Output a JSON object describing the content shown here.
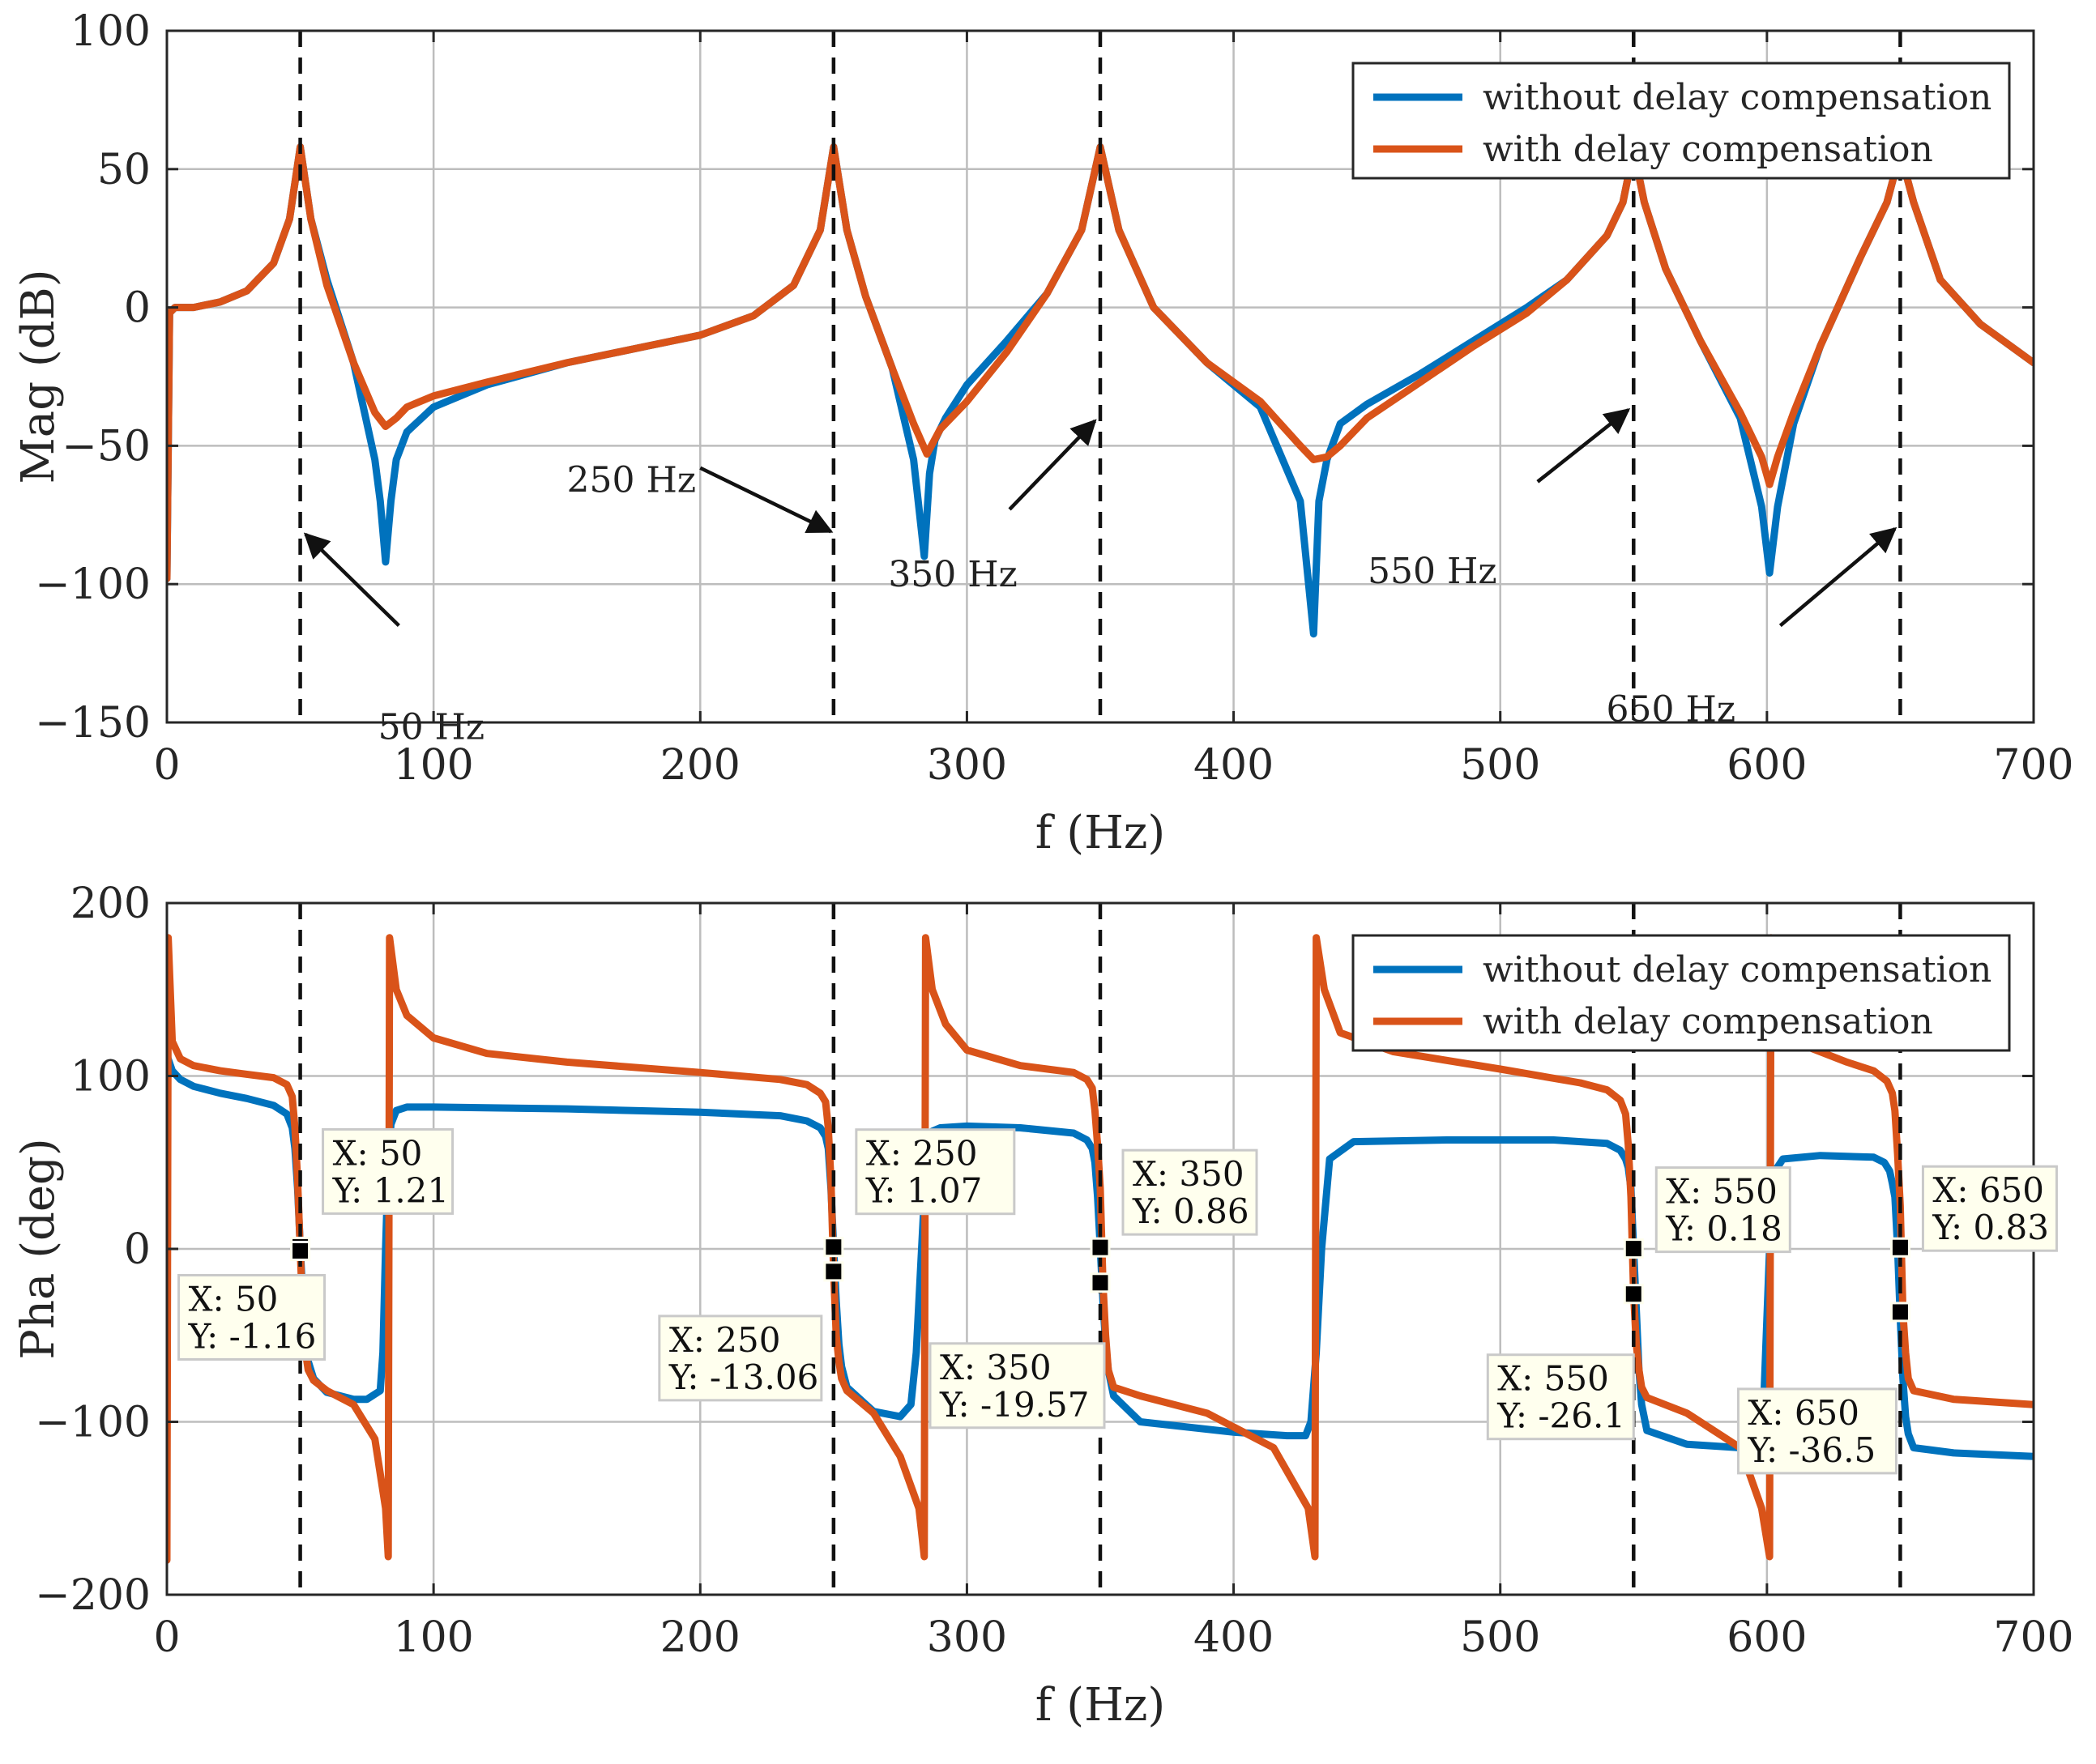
{
  "chart_data": [
    {
      "type": "line",
      "id": "magnitude",
      "xlabel": "f  (Hz)",
      "ylabel": "Mag  (dB)",
      "xlim": [
        0,
        700
      ],
      "ylim": [
        -150,
        100
      ],
      "xticks": [
        0,
        100,
        200,
        300,
        400,
        500,
        600,
        700
      ],
      "yticks": [
        -150,
        -100,
        -50,
        0,
        50,
        100
      ],
      "ytick_labels": [
        "−150",
        "−100",
        "−50",
        "0",
        "50",
        "100"
      ],
      "grid": true,
      "legend": {
        "position": "top-right"
      },
      "resonance_marks": [
        50,
        250,
        350,
        550,
        650
      ],
      "series": [
        {
          "name": "without delay compensation",
          "color": "#0072bd",
          "x": [
            0,
            1,
            3,
            10,
            20,
            30,
            40,
            46,
            50,
            54,
            60,
            70,
            78,
            80,
            82,
            84,
            86,
            90,
            100,
            120,
            150,
            180,
            200,
            220,
            235,
            245,
            250,
            255,
            262,
            272,
            280,
            284,
            286,
            288,
            292,
            300,
            315,
            330,
            343,
            350,
            357,
            370,
            390,
            410,
            425,
            430,
            432,
            435,
            440,
            450,
            470,
            490,
            510,
            525,
            540,
            546,
            550,
            554,
            562,
            575,
            590,
            598,
            601,
            604,
            610,
            620,
            635,
            645,
            650,
            655,
            665,
            680,
            700
          ],
          "y": [
            -98,
            -2,
            0,
            0,
            2,
            6,
            16,
            32,
            58,
            32,
            10,
            -20,
            -55,
            -70,
            -92,
            -70,
            -55,
            -45,
            -36,
            -28,
            -20,
            -14,
            -10,
            -3,
            8,
            28,
            58,
            28,
            4,
            -22,
            -55,
            -90,
            -60,
            -48,
            -40,
            -28,
            -12,
            5,
            28,
            58,
            28,
            0,
            -20,
            -36,
            -70,
            -118,
            -70,
            -55,
            -42,
            -35,
            -24,
            -12,
            0,
            10,
            26,
            38,
            57,
            38,
            14,
            -12,
            -40,
            -72,
            -96,
            -72,
            -42,
            -14,
            18,
            38,
            56,
            38,
            10,
            -6,
            -20
          ]
        },
        {
          "name": "with delay compensation",
          "color": "#d95319",
          "x": [
            0,
            1,
            3,
            10,
            20,
            30,
            40,
            46,
            50,
            54,
            60,
            70,
            78,
            82,
            86,
            90,
            100,
            120,
            150,
            180,
            200,
            220,
            235,
            245,
            250,
            255,
            262,
            272,
            280,
            285,
            290,
            300,
            315,
            330,
            343,
            350,
            357,
            370,
            390,
            410,
            425,
            430,
            435,
            440,
            450,
            470,
            490,
            510,
            525,
            540,
            546,
            550,
            554,
            562,
            575,
            590,
            598,
            601,
            604,
            610,
            620,
            635,
            645,
            650,
            655,
            665,
            680,
            700
          ],
          "y": [
            -98,
            -2,
            0,
            0,
            2,
            6,
            16,
            32,
            58,
            32,
            8,
            -20,
            -38,
            -43,
            -40,
            -36,
            -32,
            -27,
            -20,
            -14,
            -10,
            -3,
            8,
            28,
            58,
            28,
            4,
            -22,
            -42,
            -53,
            -44,
            -34,
            -16,
            5,
            28,
            58,
            28,
            0,
            -20,
            -34,
            -50,
            -55,
            -54,
            -50,
            -40,
            -27,
            -14,
            -2,
            10,
            26,
            38,
            57,
            38,
            14,
            -12,
            -38,
            -54,
            -64,
            -54,
            -38,
            -14,
            18,
            38,
            56,
            38,
            10,
            -6,
            -20
          ]
        }
      ]
    },
    {
      "type": "line",
      "id": "phase",
      "xlabel": "f  (Hz)",
      "ylabel": "Pha  (deg)",
      "xlim": [
        0,
        700
      ],
      "ylim": [
        -200,
        200
      ],
      "xticks": [
        0,
        100,
        200,
        300,
        400,
        500,
        600,
        700
      ],
      "yticks": [
        -200,
        -100,
        0,
        100,
        200
      ],
      "ytick_labels": [
        "−200",
        "−100",
        "0",
        "100",
        "200"
      ],
      "grid": true,
      "legend": {
        "position": "top-right"
      },
      "resonance_marks": [
        50,
        250,
        350,
        550,
        650
      ],
      "series": [
        {
          "name": "without delay compensation",
          "color": "#0072bd",
          "x": [
            0,
            2,
            5,
            10,
            20,
            30,
            40,
            45,
            47,
            48,
            49,
            50,
            51,
            52,
            53,
            55,
            60,
            70,
            75,
            80,
            81,
            82,
            83,
            84,
            86,
            90,
            100,
            150,
            200,
            230,
            240,
            245,
            247,
            248,
            249,
            250,
            251,
            252,
            253,
            255,
            265,
            275,
            279,
            281,
            283,
            285,
            287,
            290,
            300,
            320,
            340,
            345,
            347,
            348,
            349,
            350,
            351,
            352,
            353,
            355,
            365,
            400,
            420,
            427,
            429,
            431,
            433,
            436,
            445,
            480,
            520,
            540,
            545,
            547,
            548,
            549,
            550,
            551,
            552,
            553,
            555,
            570,
            590,
            597,
            599,
            601,
            603,
            606,
            620,
            640,
            644,
            646,
            647,
            648,
            649,
            650,
            651,
            652,
            653,
            655,
            670,
            700
          ],
          "y": [
            112,
            103,
            98,
            94,
            90,
            87,
            83,
            78,
            70,
            58,
            35,
            1.21,
            -30,
            -55,
            -65,
            -75,
            -83,
            -87,
            -87,
            -82,
            -60,
            0,
            50,
            72,
            80,
            82,
            82,
            81,
            79,
            77,
            74,
            70,
            65,
            58,
            35,
            1.07,
            -30,
            -55,
            -68,
            -80,
            -94,
            -97,
            -90,
            -60,
            0,
            60,
            68,
            70,
            71,
            70,
            67,
            63,
            58,
            50,
            30,
            0.86,
            -30,
            -55,
            -70,
            -85,
            -100,
            -106,
            -108,
            -108,
            -100,
            -60,
            0,
            52,
            62,
            63,
            63,
            61,
            57,
            52,
            47,
            35,
            0.18,
            -35,
            -70,
            -90,
            -105,
            -113,
            -115,
            -110,
            -80,
            0,
            45,
            52,
            54,
            53,
            50,
            45,
            38,
            30,
            0.83,
            -40,
            -75,
            -97,
            -107,
            -115,
            -118,
            -120
          ]
        },
        {
          "name": "with delay compensation",
          "color": "#d95319",
          "x": [
            0,
            0.5,
            2,
            5,
            10,
            20,
            30,
            40,
            45,
            47,
            48,
            49,
            50,
            51,
            52,
            53,
            55,
            60,
            70,
            78,
            82,
            83,
            83.5,
            86,
            90,
            100,
            120,
            150,
            200,
            230,
            240,
            245,
            247,
            248,
            249,
            250,
            251,
            252,
            253,
            255,
            265,
            275,
            282,
            284,
            284.5,
            287,
            292,
            300,
            320,
            340,
            345,
            347,
            348,
            349,
            350,
            351,
            352,
            353,
            355,
            365,
            390,
            415,
            428,
            430.5,
            431,
            434,
            440,
            460,
            500,
            530,
            540,
            545,
            547,
            548,
            549,
            550,
            551,
            552,
            553,
            555,
            570,
            590,
            598,
            601,
            601.5,
            604,
            610,
            630,
            640,
            645,
            647,
            648,
            649,
            650,
            651,
            652,
            653,
            655,
            670,
            700
          ],
          "y": [
            -180,
            180,
            120,
            110,
            106,
            103,
            101,
            99,
            95,
            88,
            70,
            40,
            -1.16,
            -40,
            -60,
            -70,
            -76,
            -82,
            -90,
            -110,
            -150,
            -178,
            180,
            150,
            135,
            122,
            113,
            108,
            102,
            98,
            95,
            90,
            85,
            70,
            40,
            -13.06,
            -50,
            -65,
            -75,
            -82,
            -95,
            -120,
            -150,
            -178,
            180,
            150,
            130,
            115,
            106,
            102,
            98,
            93,
            80,
            60,
            35,
            -19.57,
            -50,
            -70,
            -80,
            -85,
            -95,
            -115,
            -150,
            -178,
            180,
            150,
            125,
            114,
            104,
            96,
            92,
            86,
            78,
            60,
            30,
            -26.1,
            -55,
            -70,
            -80,
            -86,
            -95,
            -115,
            -150,
            -178,
            180,
            140,
            120,
            108,
            103,
            97,
            90,
            80,
            55,
            25,
            -36.5,
            -60,
            -75,
            -82,
            -87,
            -90
          ]
        }
      ]
    }
  ],
  "magnitude_annotations": [
    {
      "text": "50 Hz",
      "tail": [
        87,
        -115
      ],
      "head": [
        52,
        -82
      ]
    },
    {
      "text": "250 Hz",
      "tail": [
        200,
        -58
      ],
      "head": [
        249,
        -81
      ]
    },
    {
      "text": "350 Hz",
      "tail": [
        316,
        -73
      ],
      "head": [
        348,
        -41
      ]
    },
    {
      "text": "550 Hz",
      "tail": [
        514,
        -63
      ],
      "head": [
        548,
        -37
      ]
    },
    {
      "text": "650 Hz",
      "tail": [
        605,
        -115
      ],
      "head": [
        648,
        -80
      ]
    }
  ],
  "datatips": [
    {
      "x": 50,
      "y": 1.21,
      "label_x": "X: 50",
      "label_y": "Y: 1.21"
    },
    {
      "x": 50,
      "y": -1.16,
      "label_x": "X: 50",
      "label_y": "Y: -1.16"
    },
    {
      "x": 250,
      "y": 1.07,
      "label_x": "X: 250",
      "label_y": "Y: 1.07"
    },
    {
      "x": 250,
      "y": -13.06,
      "label_x": "X: 250",
      "label_y": "Y: -13.06"
    },
    {
      "x": 350,
      "y": 0.86,
      "label_x": "X: 350",
      "label_y": "Y: 0.86"
    },
    {
      "x": 350,
      "y": -19.57,
      "label_x": "X: 350",
      "label_y": "Y: -19.57"
    },
    {
      "x": 550,
      "y": 0.18,
      "label_x": "X: 550",
      "label_y": "Y: 0.18"
    },
    {
      "x": 550,
      "y": -26.1,
      "label_x": "X: 550",
      "label_y": "Y: -26.1"
    },
    {
      "x": 650,
      "y": 0.83,
      "label_x": "X: 650",
      "label_y": "Y: 0.83"
    },
    {
      "x": 650,
      "y": -36.5,
      "label_x": "X: 650",
      "label_y": "Y: -36.5"
    }
  ]
}
